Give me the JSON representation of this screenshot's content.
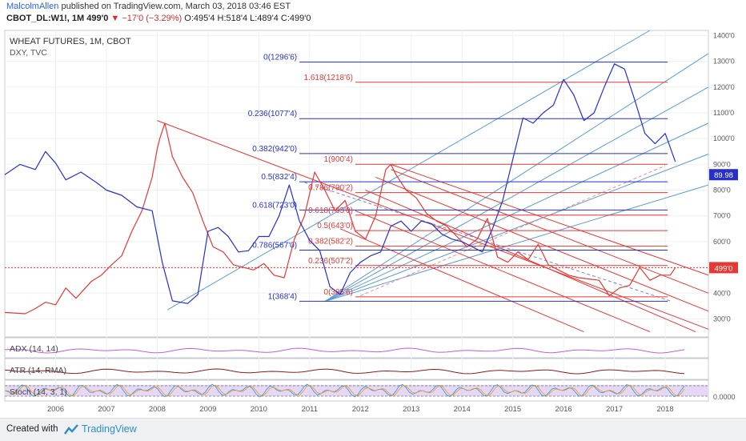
{
  "header": {
    "author": "MalcolmAllen",
    "published": "published on TradingView.com, March 03, 2018 03:46 EST",
    "symbol_line": "CBOT_DL:W1!, 1M 499'0",
    "change": "▼ −17'0 (−3.29%)",
    "ohlc": "O:495'4 H:518'4 L:489'4 C:499'0"
  },
  "footer": {
    "created": "Created with",
    "brand": "TradingView"
  },
  "colors": {
    "wheat": "#e53935",
    "dxy": "#2630c9",
    "channel": "#5b9bd5",
    "fib_blue": "#2630c9",
    "fib_red": "#e53935",
    "stoch_band": "#d9c7f2",
    "adx": "#c85cd6",
    "atr": "#8b1a1a"
  },
  "chart_data": [
    {
      "type": "line",
      "title": "WHEAT FUTURES, 1M, CBOT",
      "subtitle": "DXY, TVC",
      "x_ticks": [
        "2006",
        "2007",
        "2008",
        "2009",
        "2010",
        "2011",
        "2012",
        "2013",
        "2014",
        "2015",
        "2016",
        "2017",
        "2018"
      ],
      "y_ticks": [
        "1400'0",
        "1300'0",
        "1200'0",
        "1100'0",
        "1000'0",
        "900'0",
        "800'0",
        "700'0",
        "600'0",
        "500'0",
        "400'0",
        "300'0"
      ],
      "ylim": [
        230,
        1420
      ],
      "series": [
        {
          "name": "WHEAT FUTURES",
          "x": [
            2005.0,
            2005.4,
            2005.6,
            2005.8,
            2006.0,
            2006.2,
            2006.4,
            2006.7,
            2006.9,
            2007.1,
            2007.3,
            2007.5,
            2007.7,
            2007.9,
            2008.0,
            2008.05,
            2008.15,
            2008.3,
            2008.5,
            2008.7,
            2008.9,
            2009.1,
            2009.3,
            2009.5,
            2009.7,
            2009.9,
            2010.1,
            2010.3,
            2010.5,
            2010.7,
            2010.9,
            2011.1,
            2011.3,
            2011.5,
            2011.7,
            2011.9,
            2012.1,
            2012.3,
            2012.5,
            2012.6,
            2012.7,
            2012.9,
            2013.1,
            2013.3,
            2013.5,
            2013.7,
            2013.9,
            2014.1,
            2014.3,
            2014.5,
            2014.7,
            2014.9,
            2015.1,
            2015.3,
            2015.5,
            2015.7,
            2015.9,
            2016.1,
            2016.3,
            2016.5,
            2016.7,
            2016.9,
            2017.1,
            2017.3,
            2017.5,
            2017.7,
            2017.9,
            2018.1,
            2018.2
          ],
          "y": [
            325,
            320,
            340,
            365,
            355,
            420,
            380,
            445,
            470,
            510,
            545,
            640,
            720,
            850,
            960,
            1000,
            1060,
            930,
            850,
            790,
            680,
            580,
            560,
            510,
            500,
            490,
            515,
            470,
            460,
            610,
            700,
            870,
            800,
            720,
            760,
            640,
            610,
            700,
            880,
            900,
            860,
            800,
            770,
            710,
            680,
            660,
            620,
            580,
            610,
            690,
            540,
            520,
            560,
            530,
            590,
            510,
            490,
            470,
            460,
            455,
            450,
            390,
            420,
            430,
            500,
            450,
            470,
            470,
            499
          ]
        },
        {
          "name": "DXY",
          "x": [
            2005.0,
            2005.3,
            2005.6,
            2005.8,
            2006.0,
            2006.2,
            2006.5,
            2006.8,
            2007.0,
            2007.3,
            2007.6,
            2007.9,
            2008.1,
            2008.3,
            2008.6,
            2008.8,
            2009.0,
            2009.2,
            2009.4,
            2009.6,
            2009.8,
            2010.0,
            2010.2,
            2010.4,
            2010.6,
            2010.8,
            2011.0,
            2011.2,
            2011.4,
            2011.6,
            2011.8,
            2012.0,
            2012.2,
            2012.4,
            2012.6,
            2012.8,
            2013.0,
            2013.2,
            2013.4,
            2013.6,
            2013.8,
            2014.0,
            2014.2,
            2014.4,
            2014.6,
            2014.8,
            2015.0,
            2015.2,
            2015.4,
            2015.6,
            2015.8,
            2016.0,
            2016.2,
            2016.4,
            2016.6,
            2016.8,
            2017.0,
            2017.2,
            2017.4,
            2017.6,
            2017.8,
            2018.0,
            2018.2
          ],
          "y": [
            860,
            900,
            880,
            950,
            905,
            840,
            870,
            830,
            800,
            780,
            735,
            720,
            520,
            370,
            360,
            395,
            640,
            655,
            620,
            560,
            565,
            620,
            620,
            700,
            820,
            680,
            605,
            565,
            425,
            395,
            480,
            520,
            545,
            560,
            660,
            680,
            640,
            680,
            670,
            630,
            610,
            600,
            580,
            560,
            650,
            760,
            920,
            1080,
            1060,
            1100,
            1130,
            1230,
            1170,
            1070,
            1100,
            1200,
            1290,
            1270,
            1150,
            1020,
            980,
            1020,
            910
          ]
        },
        {
          "name": "Fibonacci levels",
          "levels": [
            {
              "label": "0(1296'6)",
              "value": 1296.75
            },
            {
              "label": "1.618(1218'6)",
              "value": 1218.75
            },
            {
              "label": "0.236(1077'4)",
              "value": 1077.5
            },
            {
              "label": "0.382(942'0)",
              "value": 942.0
            },
            {
              "label": "1(900'4)",
              "value": 900.5
            },
            {
              "label": "0.5(832'4)",
              "value": 832.5
            },
            {
              "label": "0.786(790'2)",
              "value": 790.25
            },
            {
              "label": "0.618(723'0)",
              "value": 723.0
            },
            {
              "label": "0.618(703'0)",
              "value": 703.0
            },
            {
              "label": "0.5(643'0)",
              "value": 643.0
            },
            {
              "label": "0.382(582'2)",
              "value": 582.25
            },
            {
              "label": "0.786(567'0)",
              "value": 567.0
            },
            {
              "label": "0.236(507'2)",
              "value": 507.25
            },
            {
              "label": "0(385'6)",
              "value": 385.75
            },
            {
              "label": "1(368'4)",
              "value": 368.5
            }
          ]
        }
      ],
      "price_badges": [
        "89.98",
        "499'0"
      ]
    },
    {
      "type": "line",
      "title": "ADX (14, 14)"
    },
    {
      "type": "line",
      "title": "ATR (14, RMA)"
    },
    {
      "type": "line",
      "title": "Stoch (14, 3, 1)",
      "y_ticks": [
        "0.0000"
      ]
    }
  ]
}
